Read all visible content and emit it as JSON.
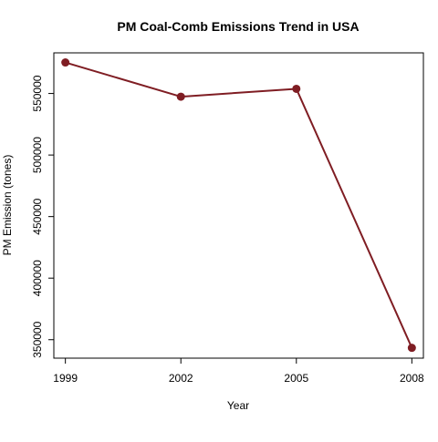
{
  "chart_data": {
    "type": "line",
    "title": "PM Coal-Comb Emissions Trend in USA",
    "xlabel": "Year",
    "ylabel": "PM Emission (tones)",
    "x": [
      1999,
      2002,
      2005,
      2008
    ],
    "series": [
      {
        "values": [
          575200,
          547400,
          553800,
          343400
        ]
      }
    ],
    "xticks": [
      "1999",
      "2002",
      "2005",
      "2008"
    ],
    "yticks": [
      "350000",
      "400000",
      "450000",
      "500000",
      "550000"
    ],
    "ytick_values": [
      350000,
      400000,
      450000,
      500000,
      550000
    ],
    "xlim": [
      1998.7,
      2008.3
    ],
    "ylim": [
      335000,
      583000
    ],
    "grid": false,
    "line_color": "#7f1d23",
    "marker": "filled-circle"
  }
}
